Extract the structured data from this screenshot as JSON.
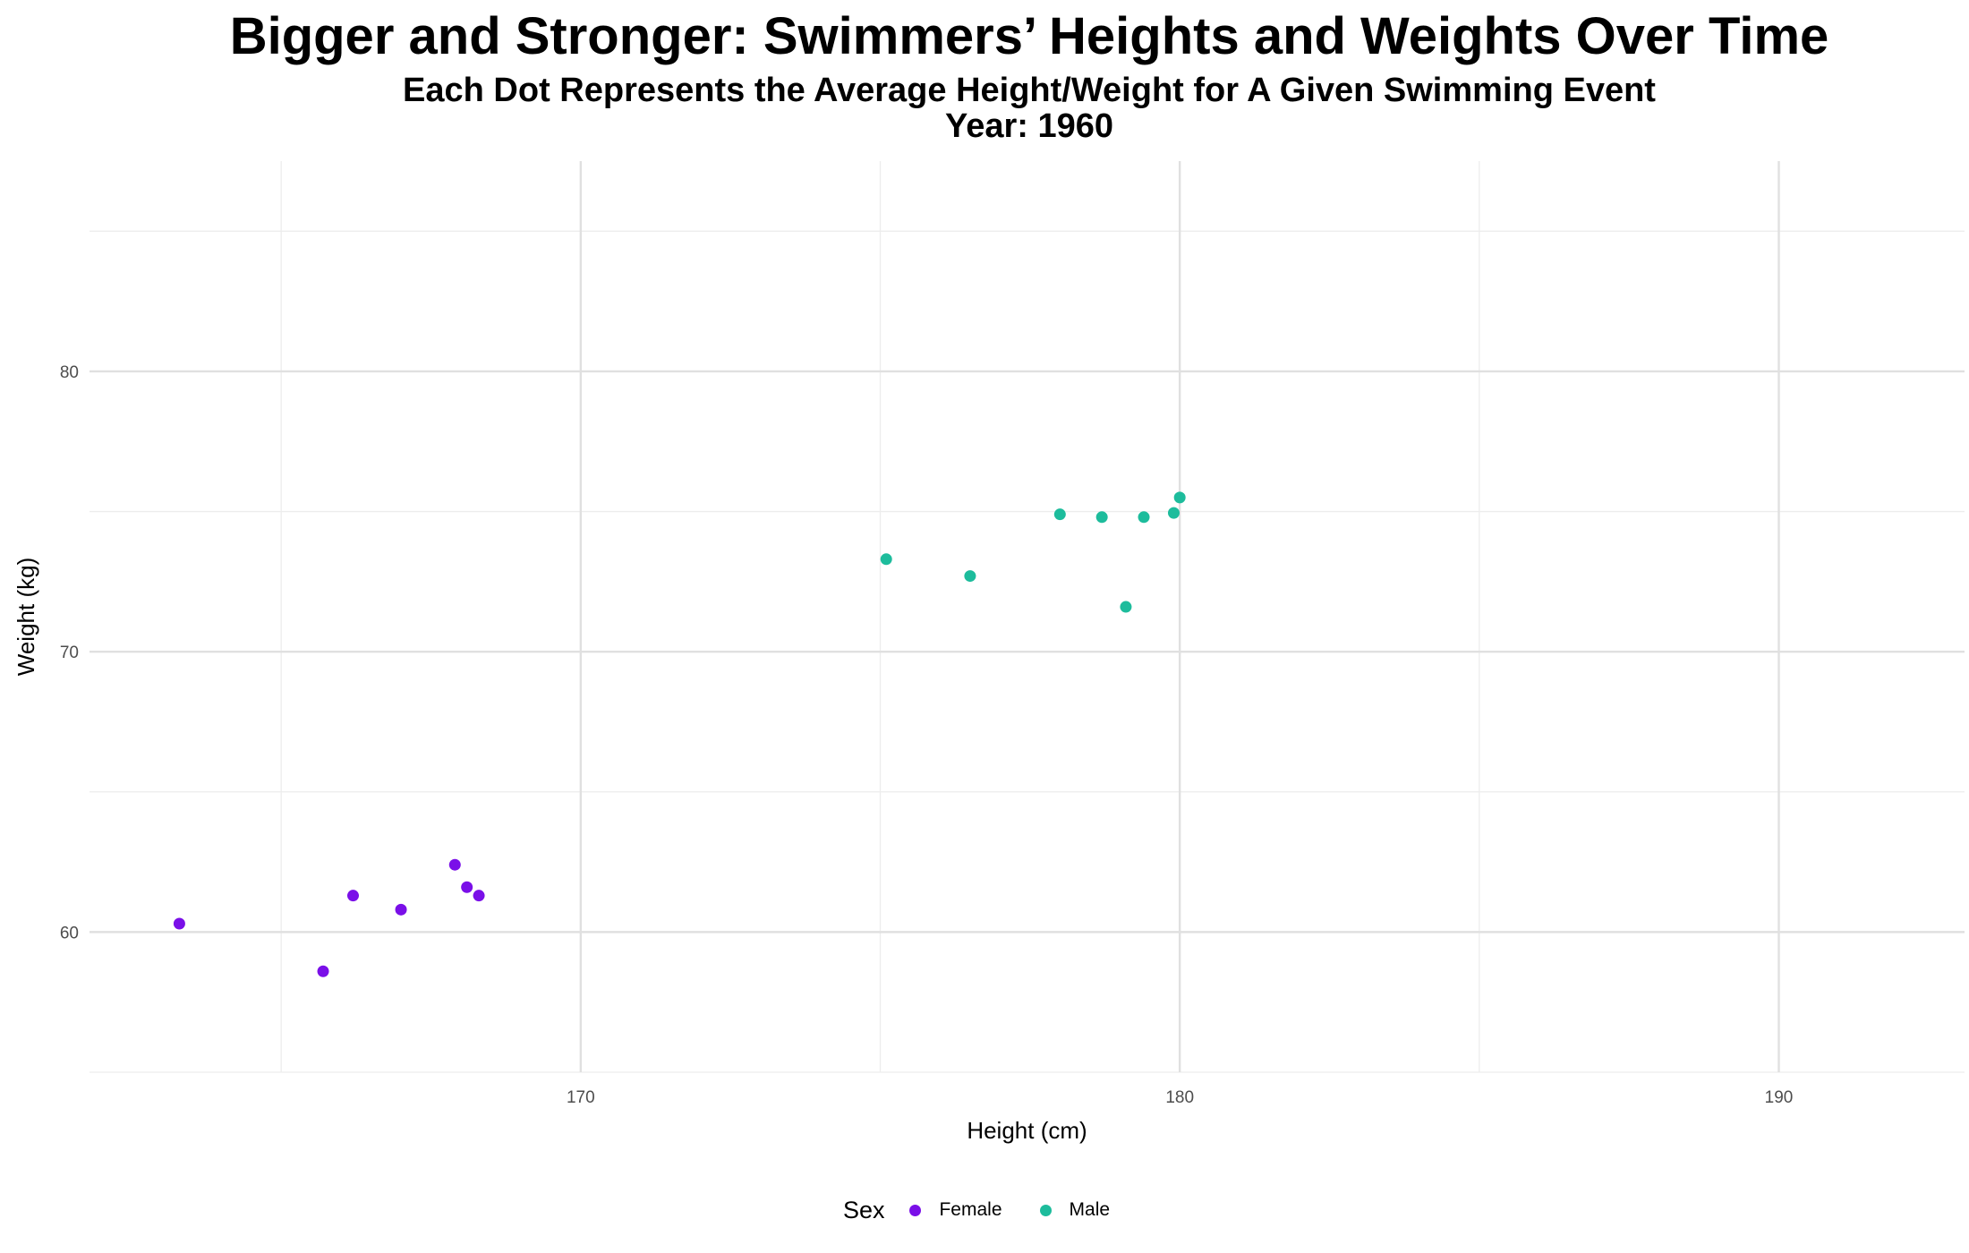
{
  "chart": {
    "title": "Bigger and Stronger: Swimmers’ Heights and Weights Over Time",
    "subtitle": "Each Dot Represents the Average Height/Weight for A Given Swimming Event",
    "year_label": "Year: 1960"
  },
  "legend": {
    "title": "Sex",
    "items": [
      {
        "label": "Female",
        "color": "#7a0fe8"
      },
      {
        "label": "Male",
        "color": "#1dbc9c"
      }
    ]
  },
  "chart_data": {
    "type": "scatter",
    "title": "Bigger and Stronger: Swimmers’ Heights and Weights Over Time",
    "subtitle": "Each Dot Represents the Average Height/Weight for A Given Swimming Event",
    "annotation": "Year: 1960",
    "xlabel": "Height (cm)",
    "ylabel": "Weight (kg)",
    "xlim": [
      161.8,
      193.1
    ],
    "ylim": [
      55,
      87.5
    ],
    "x_ticks": [
      170,
      180,
      190
    ],
    "y_ticks": [
      60,
      70,
      80
    ],
    "grid": true,
    "legend_position": "bottom",
    "series": [
      {
        "name": "Female",
        "color": "#7a0fe8",
        "points": [
          {
            "x": 163.3,
            "y": 60.3
          },
          {
            "x": 165.7,
            "y": 58.6
          },
          {
            "x": 166.2,
            "y": 61.3
          },
          {
            "x": 167.0,
            "y": 60.8
          },
          {
            "x": 167.9,
            "y": 62.4
          },
          {
            "x": 168.1,
            "y": 61.6
          },
          {
            "x": 168.3,
            "y": 61.3
          }
        ]
      },
      {
        "name": "Male",
        "color": "#1dbc9c",
        "points": [
          {
            "x": 175.1,
            "y": 73.3
          },
          {
            "x": 176.5,
            "y": 72.7
          },
          {
            "x": 178.0,
            "y": 74.9
          },
          {
            "x": 178.7,
            "y": 74.8
          },
          {
            "x": 179.1,
            "y": 71.6
          },
          {
            "x": 179.4,
            "y": 74.8
          },
          {
            "x": 179.9,
            "y": 74.95
          },
          {
            "x": 180.0,
            "y": 75.5
          }
        ]
      }
    ]
  }
}
